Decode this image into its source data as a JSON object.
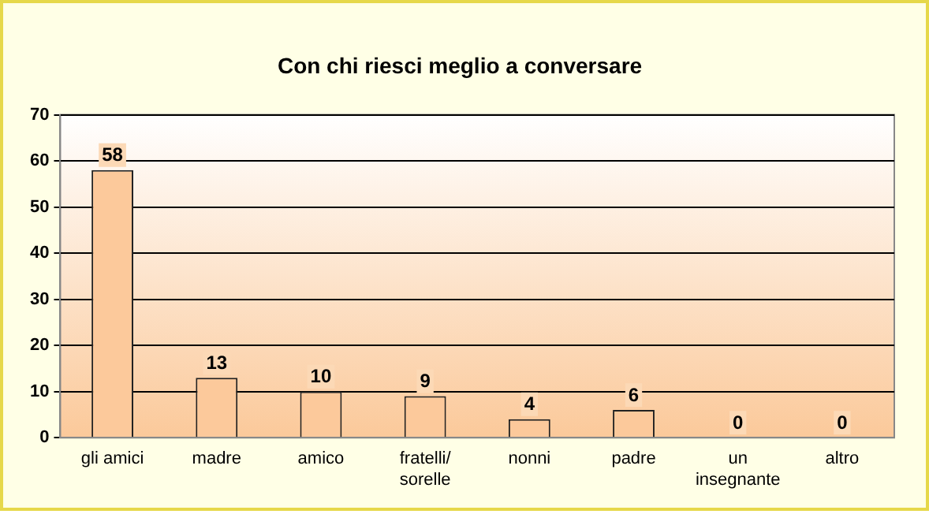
{
  "chart_data": {
    "type": "bar",
    "title": "Con chi riesci meglio a conversare",
    "categories": [
      "gli amici",
      "madre",
      "amico",
      "fratelli/\nsorelle",
      "nonni",
      "padre",
      "un\ninsegnante",
      "altro"
    ],
    "values": [
      58,
      13,
      10,
      9,
      4,
      6,
      0,
      0
    ],
    "color": "#fcc99b",
    "ylim": [
      0,
      70
    ],
    "yticks": [
      0,
      10,
      20,
      30,
      40,
      50,
      60,
      70
    ],
    "grid": "y",
    "data_labels": true,
    "legend": false
  }
}
